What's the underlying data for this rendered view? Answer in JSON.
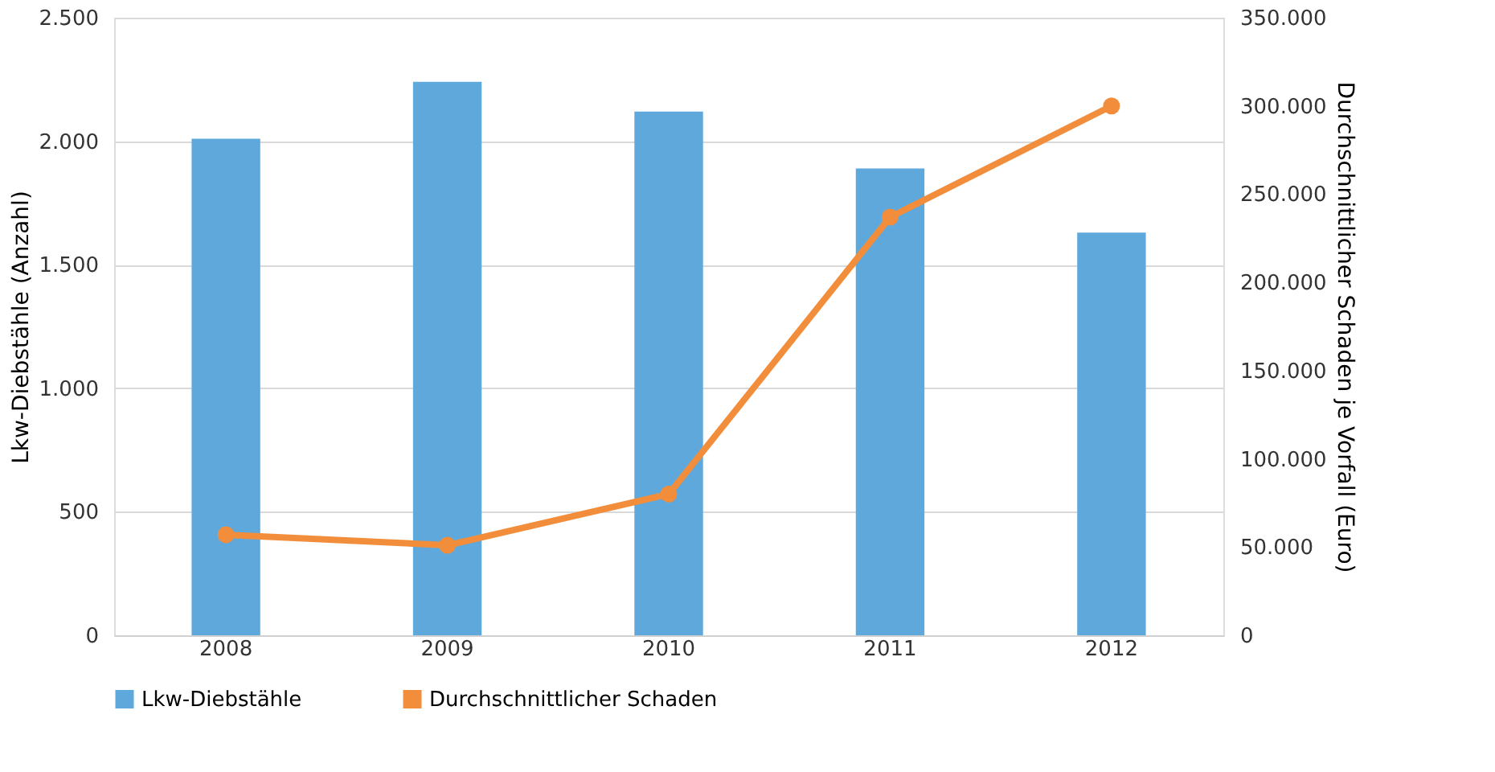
{
  "chart_data": {
    "type": "bar",
    "categories": [
      "2008",
      "2009",
      "2010",
      "2011",
      "2012"
    ],
    "ylabel": "Lkw-Diebstähle (Anzahl)",
    "y2label": "Durchschnittlicher Schaden je Vorfall (Euro)",
    "series": [
      {
        "name": "Lkw-Diebstähle",
        "color": "#5fa8dc",
        "values": [
          2010,
          2240,
          2120,
          1890,
          1630
        ]
      },
      {
        "name": "Durchschnittlicher Schaden",
        "type": "line",
        "axis": "y2",
        "color": "#f28e3b",
        "values": [
          57000,
          51000,
          80000,
          237000,
          300000
        ]
      }
    ],
    "ylim": [
      0,
      2500
    ],
    "yticks": [
      0,
      500,
      {
        "value": 1000,
        "label": "1.000"
      },
      {
        "value": 1500,
        "label": "1.500"
      },
      {
        "value": 2000,
        "label": "2.000"
      },
      {
        "value": 2500,
        "label": "2.500"
      }
    ],
    "y2lim": [
      0,
      350000
    ],
    "y2ticks": [
      0,
      {
        "value": 50000,
        "label": "50.000"
      },
      {
        "value": 100000,
        "label": "100.000"
      },
      {
        "value": 150000,
        "label": "150.000"
      },
      {
        "value": 200000,
        "label": "200.000"
      },
      {
        "value": 250000,
        "label": "250.000"
      },
      {
        "value": 300000,
        "label": "300.000"
      },
      {
        "value": 350000,
        "label": "350.000"
      }
    ],
    "grid": "y",
    "legend": "bottom",
    "marker": "circle",
    "line_style": "solid"
  }
}
